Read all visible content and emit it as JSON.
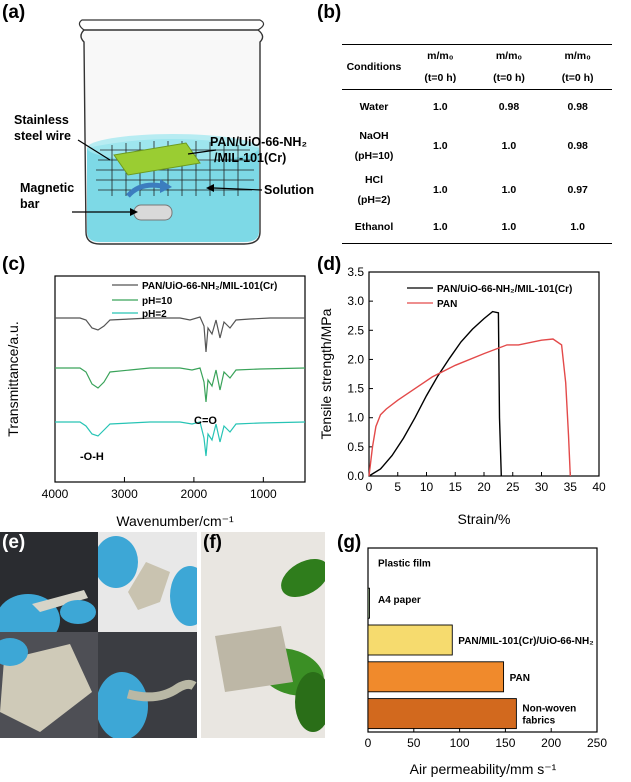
{
  "panels": {
    "a": "(a)",
    "b": "(b)",
    "c": "(c)",
    "d": "(d)",
    "e": "(e)",
    "f": "(f)",
    "g": "(g)"
  },
  "panel_a": {
    "label_wire": [
      "Stainless",
      "steel wire"
    ],
    "label_membrane": [
      "PAN/UiO-66-NH₂",
      "/MIL-101(Cr)"
    ],
    "label_bar": [
      "Magnetic",
      "bar"
    ],
    "label_solution": "Solution"
  },
  "table_b": {
    "headers": [
      [
        "Conditions"
      ],
      [
        "m/m₀",
        "(t=0 h)"
      ],
      [
        "m/m₀",
        "(t=0 h)"
      ],
      [
        "m/m₀",
        "(t=0 h)"
      ]
    ],
    "rows": [
      {
        "condition": [
          "Water"
        ],
        "values": [
          "1.0",
          "0.98",
          "0.98"
        ]
      },
      {
        "condition": [
          "NaOH",
          "(pH=10)"
        ],
        "values": [
          "1.0",
          "1.0",
          "0.98"
        ]
      },
      {
        "condition": [
          "HCl",
          "(pH=2)"
        ],
        "values": [
          "1.0",
          "1.0",
          "0.97"
        ]
      },
      {
        "condition": [
          "Ethanol"
        ],
        "values": [
          "1.0",
          "1.0",
          "1.0"
        ]
      }
    ]
  },
  "chart_data": [
    {
      "panel": "c",
      "type": "line",
      "xlabel": "Wavenumber/cm⁻¹",
      "ylabel": "Transmittance/a.u.",
      "xlim": [
        4000,
        400
      ],
      "x_ticks": [
        4000,
        3000,
        2000,
        1000
      ],
      "grid": false,
      "legend_position": "top-right",
      "series": [
        {
          "name": "PAN/UiO-66-NH₂/MIL-101(Cr)",
          "color": "#555555"
        },
        {
          "name": "pH=10",
          "color": "#3aa35a"
        },
        {
          "name": "pH=2",
          "color": "#27c4b5"
        }
      ],
      "annotations": [
        "C=O",
        "-O-H"
      ]
    },
    {
      "panel": "d",
      "type": "line",
      "xlabel": "Strain/%",
      "ylabel": "Tensile strength/MPa",
      "xlim": [
        0,
        40
      ],
      "ylim": [
        0,
        3.5
      ],
      "x_ticks": [
        0,
        5,
        10,
        15,
        20,
        25,
        30,
        35,
        40
      ],
      "y_ticks": [
        0.0,
        0.5,
        1.0,
        1.5,
        2.0,
        2.5,
        3.0,
        3.5
      ],
      "grid": false,
      "legend_position": "top-left",
      "series": [
        {
          "name": "PAN/UiO-66-NH₂/MIL-101(Cr)",
          "color": "#000000",
          "x": [
            0,
            2,
            4,
            6,
            8,
            10,
            12,
            14,
            16,
            18,
            20,
            21.5,
            22.5,
            22.7,
            23.0
          ],
          "y": [
            0,
            0.12,
            0.35,
            0.65,
            1.0,
            1.38,
            1.72,
            2.02,
            2.3,
            2.52,
            2.7,
            2.82,
            2.8,
            1.0,
            0.0
          ]
        },
        {
          "name": "PAN",
          "color": "#e34a4a",
          "x": [
            0,
            0.6,
            1.2,
            2,
            3,
            5,
            8,
            11,
            15,
            20,
            24,
            26,
            30,
            32,
            33.5,
            34.2,
            34.7,
            35.0
          ],
          "y": [
            0,
            0.5,
            0.85,
            1.05,
            1.15,
            1.3,
            1.5,
            1.7,
            1.9,
            2.1,
            2.25,
            2.25,
            2.33,
            2.35,
            2.25,
            1.6,
            0.7,
            0.0
          ]
        }
      ]
    },
    {
      "panel": "g",
      "type": "bar",
      "orientation": "horizontal",
      "xlabel": "Air permeability/mm s⁻¹",
      "xlim": [
        0,
        250
      ],
      "x_ticks": [
        0,
        50,
        100,
        150,
        200,
        250
      ],
      "categories": [
        "Plastic film",
        "A4 paper",
        "PAN/MIL-101(Cr)/UiO-66-NH₂",
        "PAN",
        "Non-woven fabrics"
      ],
      "category_label_lines": [
        [
          "Plastic film"
        ],
        [
          "A4 paper"
        ],
        [
          "PAN/MIL-101(Cr)/UiO-66-NH₂"
        ],
        [
          "PAN"
        ],
        [
          "Non-woven",
          "fabrics"
        ]
      ],
      "values": [
        0,
        1,
        92,
        148,
        162
      ],
      "colors": [
        "#ffffff",
        "#b6d7a8",
        "#f6db6e",
        "#f08a2c",
        "#d2691e"
      ]
    }
  ]
}
